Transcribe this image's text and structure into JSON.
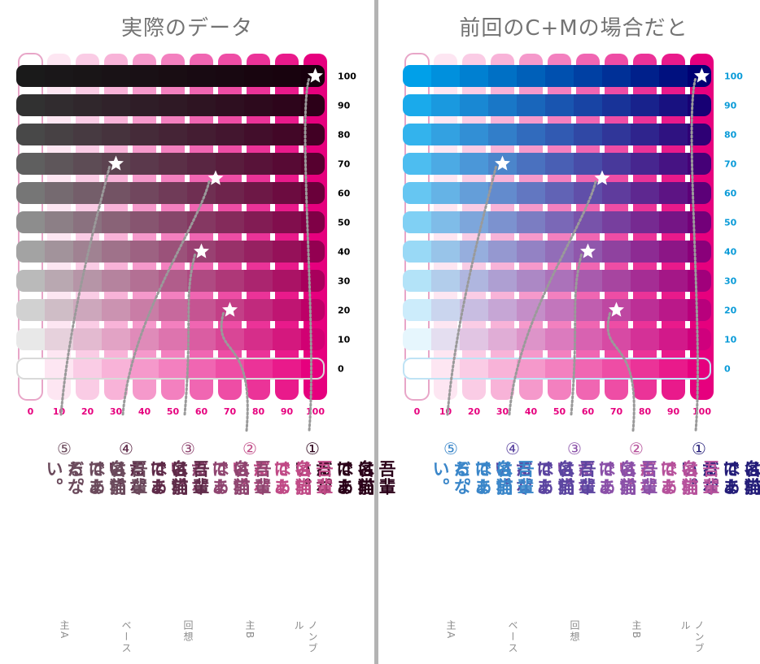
{
  "panels": [
    {
      "title": "実際のデータ",
      "mode": "black",
      "label_color": "#000000",
      "column_labels": [
        "0",
        "10",
        "20",
        "30",
        "40",
        "50",
        "60",
        "70",
        "80",
        "90",
        "100"
      ],
      "row_labels": [
        "100",
        "90",
        "80",
        "70",
        "60",
        "50",
        "40",
        "30",
        "20",
        "10",
        "0"
      ],
      "stars": [
        {
          "id": 1,
          "col": 100,
          "row": 100
        },
        {
          "id": 2,
          "col": 70,
          "row": 20
        },
        {
          "id": 3,
          "col": 60,
          "row": 40
        },
        {
          "id": 4,
          "col": 65,
          "row": 65
        },
        {
          "id": 5,
          "col": 30,
          "row": 70
        }
      ],
      "texts": [
        {
          "num": "①",
          "col1": "吾輩は猫である。",
          "col2": "名前はまだない。",
          "color": "#2a0018",
          "role": "ノンブル"
        },
        {
          "num": "②",
          "col1": "吾輩は猫である。",
          "col2": "名前はまだない。",
          "color": "#c04a86",
          "role": "主B"
        },
        {
          "num": "③",
          "col1": "吾輩は猫である。",
          "col2": "名前はまだない。",
          "color": "#8f4570",
          "role": "回想"
        },
        {
          "num": "④",
          "col1": "吾輩は猫である。",
          "col2": "名前はまだない。",
          "color": "#5e2a48",
          "role": "ベース"
        },
        {
          "num": "⑤",
          "col1": "吾輩は猫である。",
          "col2": "名前はまだない。",
          "color": "#6b4a5c",
          "role": "主A"
        }
      ]
    },
    {
      "title": "前回のC+Mの場合だと",
      "mode": "cyan",
      "label_color": "#0a9bd8",
      "column_labels": [
        "0",
        "10",
        "20",
        "30",
        "40",
        "50",
        "60",
        "70",
        "80",
        "90",
        "100"
      ],
      "row_labels": [
        "100",
        "90",
        "80",
        "70",
        "60",
        "50",
        "40",
        "30",
        "20",
        "10",
        "0"
      ],
      "stars": [
        {
          "id": 1,
          "col": 100,
          "row": 100
        },
        {
          "id": 2,
          "col": 70,
          "row": 20
        },
        {
          "id": 3,
          "col": 60,
          "row": 40
        },
        {
          "id": 4,
          "col": 65,
          "row": 65
        },
        {
          "id": 5,
          "col": 30,
          "row": 70
        }
      ],
      "texts": [
        {
          "num": "①",
          "col1": "吾輩は猫である。",
          "col2": "名前はまだない。",
          "color": "#231c78",
          "role": "ノンブル"
        },
        {
          "num": "②",
          "col1": "吾輩は猫である。",
          "col2": "名前はまだない。",
          "color": "#b6519b",
          "role": "主B"
        },
        {
          "num": "③",
          "col1": "吾輩は猫である。",
          "col2": "名前はまだない。",
          "color": "#8a50a8",
          "role": "回想"
        },
        {
          "num": "④",
          "col1": "吾輩は猫である。",
          "col2": "名前はまだない。",
          "color": "#5b44a0",
          "role": "ベース"
        },
        {
          "num": "⑤",
          "col1": "吾輩は猫である。",
          "col2": "名前はまだない。",
          "color": "#3a86c9",
          "role": "主A"
        }
      ]
    }
  ],
  "colors": {
    "magenta": "#e6007e",
    "cyan": "#00a0e9",
    "black": "#1a1a1a",
    "star": "#ffffff",
    "divider": "#b3b3b3"
  }
}
